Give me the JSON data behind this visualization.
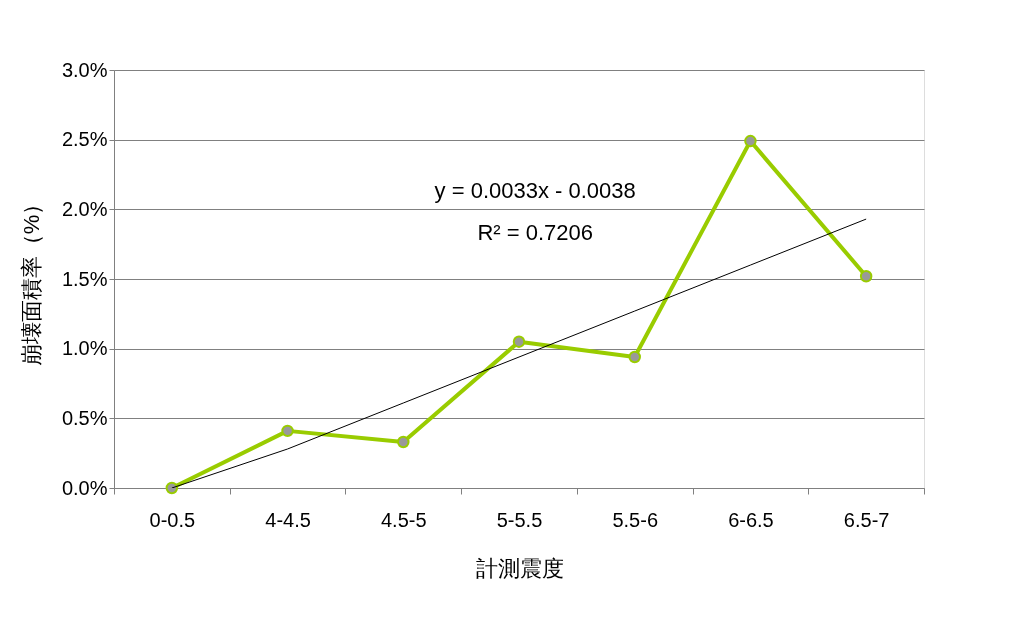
{
  "chart_data": {
    "type": "line",
    "xlabel": "計測震度",
    "ylabel": "崩壊面積率（%）",
    "categories": [
      "0-0.5",
      "4-4.5",
      "4.5-5",
      "5-5.5",
      "5.5-6",
      "6-6.5",
      "6.5-7"
    ],
    "series": [
      {
        "color": "#99cc00",
        "marker": "circle",
        "values": [
          0.0,
          0.41,
          0.33,
          1.05,
          0.94,
          2.49,
          1.52
        ]
      },
      {
        "color": "#000000",
        "marker": "none",
        "values": [
          0.0,
          0.28,
          0.61,
          0.94,
          1.27,
          1.6,
          1.93
        ]
      }
    ],
    "ylim": [
      0,
      3
    ],
    "yticks": [
      {
        "value": 0,
        "label": "0.0%"
      },
      {
        "value": 0.5,
        "label": "0.5%"
      },
      {
        "value": 1,
        "label": "1.0%"
      },
      {
        "value": 1.5,
        "label": "1.5%"
      },
      {
        "value": 2,
        "label": "2.0%"
      },
      {
        "value": 2.5,
        "label": "2.5%"
      },
      {
        "value": 3,
        "label": "3.0%"
      }
    ],
    "grid": "y",
    "annotations": [
      "y = 0.0033x - 0.0038",
      "R² = 0.7206"
    ]
  }
}
